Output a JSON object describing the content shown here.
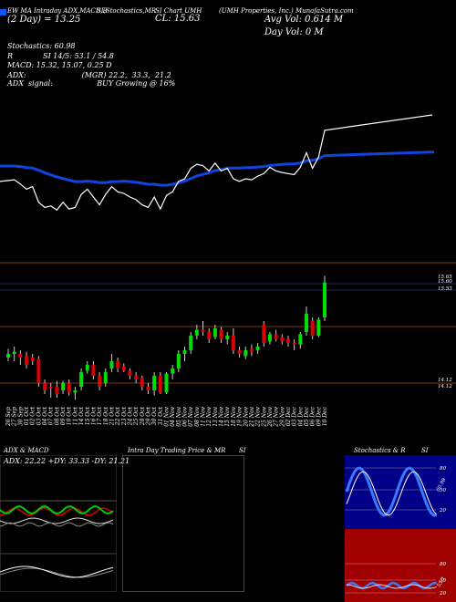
{
  "header": {
    "line1_left": "EW MA Intraday ADX,MACD,B",
    "line1_mid1": "SI,Stochastics,MR",
    "line1_mid2": "SI Chart UMH",
    "line1_right": "(UMH Properties, Inc.) MunafaSutra.com",
    "line2_left": "(2 Day) = 13.25",
    "cl_label": "CL: 15.63",
    "avg_vol": "Avg Vol: 0.614   M",
    "day_vol": "Day Vol: 0   M",
    "stoch": "Stochastics: 60.98",
    "r_line": "R             SI 14/5: 53.1 / 54.8",
    "macd": "MACD: 15.32,  15.07,  0.25  D",
    "adx": "ADX:                        (MGR) 22.2,  33.3,  21.2",
    "adx_signal": "ADX  signal:                   BUY Growing @ 16%"
  },
  "price_axis": {
    "right_labels": [
      "15.65",
      "15.60",
      "15.53",
      "14.12",
      "14.12"
    ]
  },
  "dates": [
    "26 Sep",
    "27 Sep",
    "30 Sep",
    "01 Oct",
    "02 Oct",
    "03 Oct",
    "04 Oct",
    "07 Oct",
    "08 Oct",
    "09 Oct",
    "10 Oct",
    "11 Oct",
    "14 Oct",
    "15 Oct",
    "16 Oct",
    "17 Oct",
    "18 Oct",
    "21 Oct",
    "22 Oct",
    "23 Oct",
    "24 Oct",
    "25 Oct",
    "28 Oct",
    "29 Oct",
    "30 Oct",
    "31 Oct",
    "01 Nov",
    "04 Nov",
    "05 Nov",
    "06 Nov",
    "07 Nov",
    "08 Nov",
    "11 Nov",
    "12 Nov",
    "13 Nov",
    "14 Nov",
    "15 Nov",
    "18 Nov",
    "19 Nov",
    "20 Nov",
    "21 Nov",
    "22 Nov",
    "25 Nov",
    "26 Nov",
    "27 Nov",
    "29 Nov",
    "02 Dec",
    "03 Dec",
    "04 Dec",
    "05 Dec",
    "06 Dec",
    "09 Dec",
    "10 Dec"
  ],
  "panels": {
    "adx_title": "ADX  & MACD",
    "adx_readout": "ADX: 22.22  +DY: 33.33  -DY: 21.21",
    "intra_title": "Intra  Day Trading Price  & MR",
    "intra_title2": "SI",
    "stoch_title": "Stochastics & R",
    "stoch_title2": "SI",
    "stoch_levels": [
      "80",
      "50",
      "20"
    ],
    "stoch_value": "60.98",
    "rsi_levels": [
      "80",
      "50",
      "20"
    ],
    "rsi_value": "53.1"
  },
  "colors": {
    "up": "#00dd00",
    "down": "#dd0000",
    "ma_blue": "#1144dd",
    "rsi_bg": "#a00000",
    "stoch_bg": "#000088",
    "grid_brown": "#7a3a10"
  },
  "chart_data": {
    "type": "candlestick",
    "title": "SI Chart UMH",
    "series": [
      {
        "name": "price",
        "values": [
          {
            "o": 14.6,
            "h": 14.72,
            "l": 14.55,
            "c": 14.65
          },
          {
            "o": 14.65,
            "h": 14.75,
            "l": 14.55,
            "c": 14.68
          },
          {
            "o": 14.65,
            "h": 14.7,
            "l": 14.5,
            "c": 14.6
          },
          {
            "o": 14.62,
            "h": 14.68,
            "l": 14.45,
            "c": 14.5
          },
          {
            "o": 14.6,
            "h": 14.65,
            "l": 14.5,
            "c": 14.55
          },
          {
            "o": 14.58,
            "h": 14.62,
            "l": 14.2,
            "c": 14.25
          },
          {
            "o": 14.25,
            "h": 14.3,
            "l": 14.1,
            "c": 14.15
          },
          {
            "o": 14.2,
            "h": 14.25,
            "l": 14.05,
            "c": 14.18
          },
          {
            "o": 14.2,
            "h": 14.28,
            "l": 14.05,
            "c": 14.1
          },
          {
            "o": 14.15,
            "h": 14.28,
            "l": 14.1,
            "c": 14.25
          },
          {
            "o": 14.25,
            "h": 14.3,
            "l": 14.08,
            "c": 14.12
          },
          {
            "o": 14.12,
            "h": 14.2,
            "l": 14.02,
            "c": 14.15
          },
          {
            "o": 14.2,
            "h": 14.45,
            "l": 14.15,
            "c": 14.4
          },
          {
            "o": 14.42,
            "h": 14.55,
            "l": 14.38,
            "c": 14.5
          },
          {
            "o": 14.5,
            "h": 14.55,
            "l": 14.3,
            "c": 14.35
          },
          {
            "o": 14.35,
            "h": 14.4,
            "l": 14.15,
            "c": 14.2
          },
          {
            "o": 14.25,
            "h": 14.45,
            "l": 14.2,
            "c": 14.4
          },
          {
            "o": 14.45,
            "h": 14.65,
            "l": 14.4,
            "c": 14.55
          },
          {
            "o": 14.55,
            "h": 14.6,
            "l": 14.4,
            "c": 14.45
          },
          {
            "o": 14.48,
            "h": 14.52,
            "l": 14.4,
            "c": 14.42
          },
          {
            "o": 14.42,
            "h": 14.45,
            "l": 14.3,
            "c": 14.35
          },
          {
            "o": 14.35,
            "h": 14.4,
            "l": 14.25,
            "c": 14.3
          },
          {
            "o": 14.32,
            "h": 14.35,
            "l": 14.15,
            "c": 14.2
          },
          {
            "o": 14.2,
            "h": 14.25,
            "l": 14.1,
            "c": 14.15
          },
          {
            "o": 14.15,
            "h": 14.4,
            "l": 14.08,
            "c": 14.35
          },
          {
            "o": 14.35,
            "h": 14.4,
            "l": 14.1,
            "c": 14.12
          },
          {
            "o": 14.12,
            "h": 14.4,
            "l": 14.1,
            "c": 14.38
          },
          {
            "o": 14.38,
            "h": 14.5,
            "l": 14.3,
            "c": 14.45
          },
          {
            "o": 14.45,
            "h": 14.7,
            "l": 14.4,
            "c": 14.65
          },
          {
            "o": 14.65,
            "h": 14.75,
            "l": 14.55,
            "c": 14.7
          },
          {
            "o": 14.7,
            "h": 14.95,
            "l": 14.65,
            "c": 14.9
          },
          {
            "o": 14.9,
            "h": 15.05,
            "l": 14.85,
            "c": 14.98
          },
          {
            "o": 14.98,
            "h": 15.1,
            "l": 14.9,
            "c": 14.95
          },
          {
            "o": 14.95,
            "h": 15.0,
            "l": 14.8,
            "c": 14.85
          },
          {
            "o": 14.88,
            "h": 15.05,
            "l": 14.85,
            "c": 15.0
          },
          {
            "o": 14.98,
            "h": 15.02,
            "l": 14.8,
            "c": 14.85
          },
          {
            "o": 14.85,
            "h": 14.95,
            "l": 14.78,
            "c": 14.9
          },
          {
            "o": 14.9,
            "h": 15.0,
            "l": 14.65,
            "c": 14.7
          },
          {
            "o": 14.7,
            "h": 14.75,
            "l": 14.6,
            "c": 14.65
          },
          {
            "o": 14.62,
            "h": 14.75,
            "l": 14.58,
            "c": 14.7
          },
          {
            "o": 14.72,
            "h": 14.78,
            "l": 14.62,
            "c": 14.68
          },
          {
            "o": 14.7,
            "h": 14.8,
            "l": 14.65,
            "c": 14.75
          },
          {
            "o": 15.05,
            "h": 15.1,
            "l": 14.75,
            "c": 14.8
          },
          {
            "o": 14.82,
            "h": 14.95,
            "l": 14.78,
            "c": 14.92
          },
          {
            "o": 14.92,
            "h": 14.98,
            "l": 14.82,
            "c": 14.85
          },
          {
            "o": 14.88,
            "h": 14.92,
            "l": 14.78,
            "c": 14.82
          },
          {
            "o": 14.85,
            "h": 14.9,
            "l": 14.75,
            "c": 14.8
          },
          {
            "o": 14.8,
            "h": 14.85,
            "l": 14.7,
            "c": 14.78
          },
          {
            "o": 14.78,
            "h": 14.95,
            "l": 14.72,
            "c": 14.92
          },
          {
            "o": 14.95,
            "h": 15.3,
            "l": 14.9,
            "c": 15.2
          },
          {
            "o": 15.1,
            "h": 15.15,
            "l": 14.85,
            "c": 14.9
          },
          {
            "o": 14.9,
            "h": 15.15,
            "l": 14.88,
            "c": 15.12
          },
          {
            "o": 15.15,
            "h": 15.72,
            "l": 15.1,
            "c": 15.63
          }
        ]
      }
    ],
    "price_range": [
      14.0,
      15.75
    ],
    "ema": [
      14.7,
      14.7,
      14.69,
      14.67,
      14.66,
      14.62,
      14.57,
      14.53,
      14.49,
      14.46,
      14.43,
      14.4,
      14.4,
      14.41,
      14.4,
      14.38,
      14.38,
      14.4,
      14.4,
      14.41,
      14.4,
      14.39,
      14.37,
      14.35,
      14.35,
      14.33,
      14.33,
      14.35,
      14.38,
      14.41,
      14.46,
      14.51,
      14.54,
      14.57,
      14.61,
      14.63,
      14.66,
      14.66,
      14.66,
      14.67,
      14.67,
      14.68,
      14.69,
      14.71,
      14.72,
      14.73,
      14.74,
      14.74,
      14.76,
      14.8,
      14.81,
      14.84,
      14.9
    ]
  }
}
